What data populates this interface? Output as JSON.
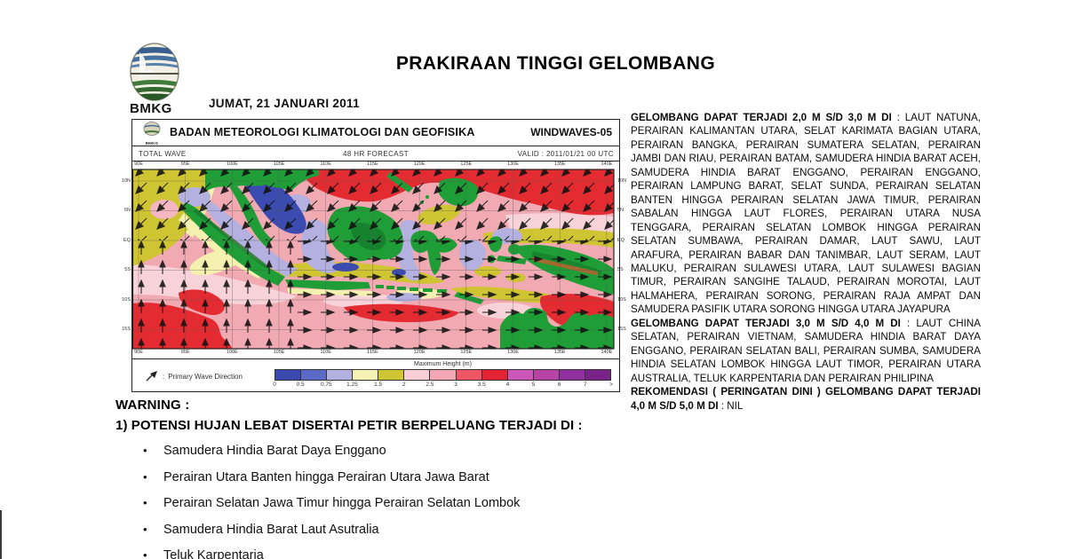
{
  "page": {
    "title": "PRAKIRAAN TINGGI GELOMBANG",
    "date": "JUMAT,  21  JANUARI  2011",
    "logo_caption": "BMKG"
  },
  "map_panel": {
    "agency": "BADAN METEOROLOGI KLIMATOLOGI DAN GEOFISIKA",
    "model": "WINDWAVES-05",
    "mini_logo_caption": "BMKG",
    "product": "TOTAL WAVE",
    "forecast": "48  HR FORECAST",
    "valid": "VALID :  2011/01/21 00  UTC",
    "axes": {
      "lon_labels": [
        "90E",
        "95E",
        "100E",
        "105E",
        "110E",
        "115E",
        "120E",
        "125E",
        "130E",
        "135E",
        "140E"
      ],
      "lat_labels": [
        "10N",
        "5N",
        "EQ",
        "5S",
        "10S",
        "15S"
      ]
    },
    "legend": {
      "direction_label": "Primary Wave Direction",
      "direction_separator": ":",
      "title": "Maximum Height (m)",
      "ticks": [
        "0",
        "0.5",
        "0.75",
        "1.25",
        "1.5",
        "2",
        "2.5",
        "3",
        "3.5",
        "4",
        "5",
        "6",
        "7",
        ">"
      ],
      "colors": [
        "#3a49ae",
        "#5b6ac6",
        "#b3b1e0",
        "#f5f2b3",
        "#cfc431",
        "#f7ced6",
        "#f3a7b5",
        "#ee5565",
        "#e32334",
        "#cb57b8",
        "#b843a7",
        "#90309f",
        "#792288"
      ]
    }
  },
  "right_column": {
    "paragraphs": [
      {
        "lead": "GELOMBANG DAPAT TERJADI 2,0 M S/D 3,0 M DI",
        "rest": " : LAUT NATUNA, PERAIRAN KALIMANTAN UTARA, SELAT KARIMATA BAGIAN UTARA, PERAIRAN BANGKA, PERAIRAN SUMATERA SELATAN, PERAIRAN JAMBI DAN RIAU, PERAIRAN BATAM, SAMUDERA HINDIA BARAT ACEH, SAMUDERA HINDIA BARAT ENGGANO, PERAIRAN ENGGANO, PERAIRAN LAMPUNG BARAT, SELAT SUNDA, PERAIRAN SELATAN BANTEN HINGGA PERAIRAN SELATAN JAWA TIMUR, PERAIRAN SABALAN HINGGA LAUT FLORES, PERAIRAN UTARA NUSA TENGGARA, PERAIRAN SELATAN LOMBOK HINGGA PERAIRAN SELATAN SUMBAWA, PERAIRAN DAMAR, LAUT SAWU, LAUT ARAFURA, PERAIRAN BABAR DAN TANIMBAR,  LAUT SERAM, LAUT MALUKU, PERAIRAN SULAWESI UTARA, LAUT SULAWESI BAGIAN TIMUR, PERAIRAN SANGIHE TALAUD, PERAIRAN MOROTAI, LAUT HALMAHERA, PERAIRAN SORONG, PERAIRAN RAJA AMPAT DAN SAMUDERA PASIFIK UTARA SORONG HINGGA UTARA JAYAPURA"
      },
      {
        "lead": "GELOMBANG DAPAT TERJADI 3,0 M S/D 4,0 M DI",
        "rest": " : LAUT CHINA SELATAN, PERAIRAN VIETNAM, SAMUDERA HINDIA BARAT DAYA ENGGANO, PERAIRAN SELATAN BALI, PERAIRAN SUMBA, SAMUDERA HINDIA SELATAN LOMBOK HINGGA LAUT TIMOR, PERAIRAN UTARA AUSTRALIA, TELUK KARPENTARIA DAN PERAIRAN PHILIPINA"
      },
      {
        "lead": "REKOMENDASI ( PERINGATAN DINI ) GELOMBANG DAPAT TERJADI  4,0 M S/D 5,0 M DI",
        "rest": " : NIL"
      }
    ]
  },
  "warning": {
    "heading": "WARNING :",
    "item1": "1) POTENSI HUJAN LEBAT DISERTAI PETIR BERPELUANG TERJADI DI :",
    "bullets": [
      "Samudera Hindia Barat Daya Enggano",
      "Perairan Utara Banten hingga Perairan Utara Jawa Barat",
      "Perairan Selatan Jawa Timur hingga Perairan Selatan Lombok",
      "Samudera Hindia Barat Laut Asutralia",
      "Teluk Karpentaria"
    ]
  }
}
